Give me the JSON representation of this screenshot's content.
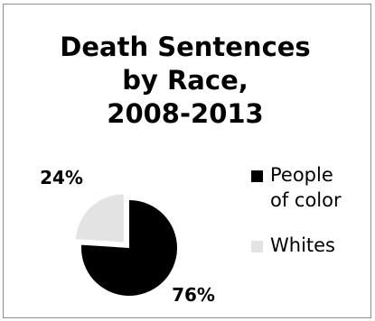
{
  "chart_data": {
    "type": "pie",
    "title_lines": [
      "Death Sentences",
      "by Race,",
      "2008-2013"
    ],
    "slices": [
      {
        "name": "People of color",
        "legend_lines": [
          "People",
          "of color"
        ],
        "value": 76,
        "label": "76%",
        "color": "#000000"
      },
      {
        "name": "Whites",
        "legend_lines": [
          "Whites"
        ],
        "value": 24,
        "label": "24%",
        "color": "#e3e3e3"
      }
    ],
    "legend_position": "right"
  }
}
